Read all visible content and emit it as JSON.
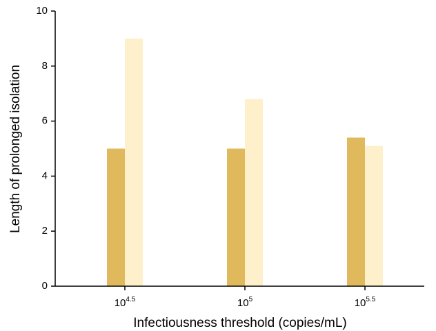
{
  "chart_data": {
    "type": "bar",
    "x_label": "Infectiousness threshold (copies/mL)",
    "y_label": "Length of prolonged isolation",
    "categories": [
      {
        "base": "10",
        "exponent": "4.5"
      },
      {
        "base": "10",
        "exponent": "5"
      },
      {
        "base": "10",
        "exponent": "5.5"
      }
    ],
    "series": [
      {
        "color": "#e0b95c",
        "values": [
          5,
          5,
          5.4
        ]
      },
      {
        "color": "#fff0cc",
        "values": [
          9,
          6.8,
          5.1
        ]
      }
    ],
    "ylim": [
      0,
      10
    ],
    "yticks": [
      0,
      2,
      4,
      6,
      8,
      10
    ],
    "grid": false
  }
}
